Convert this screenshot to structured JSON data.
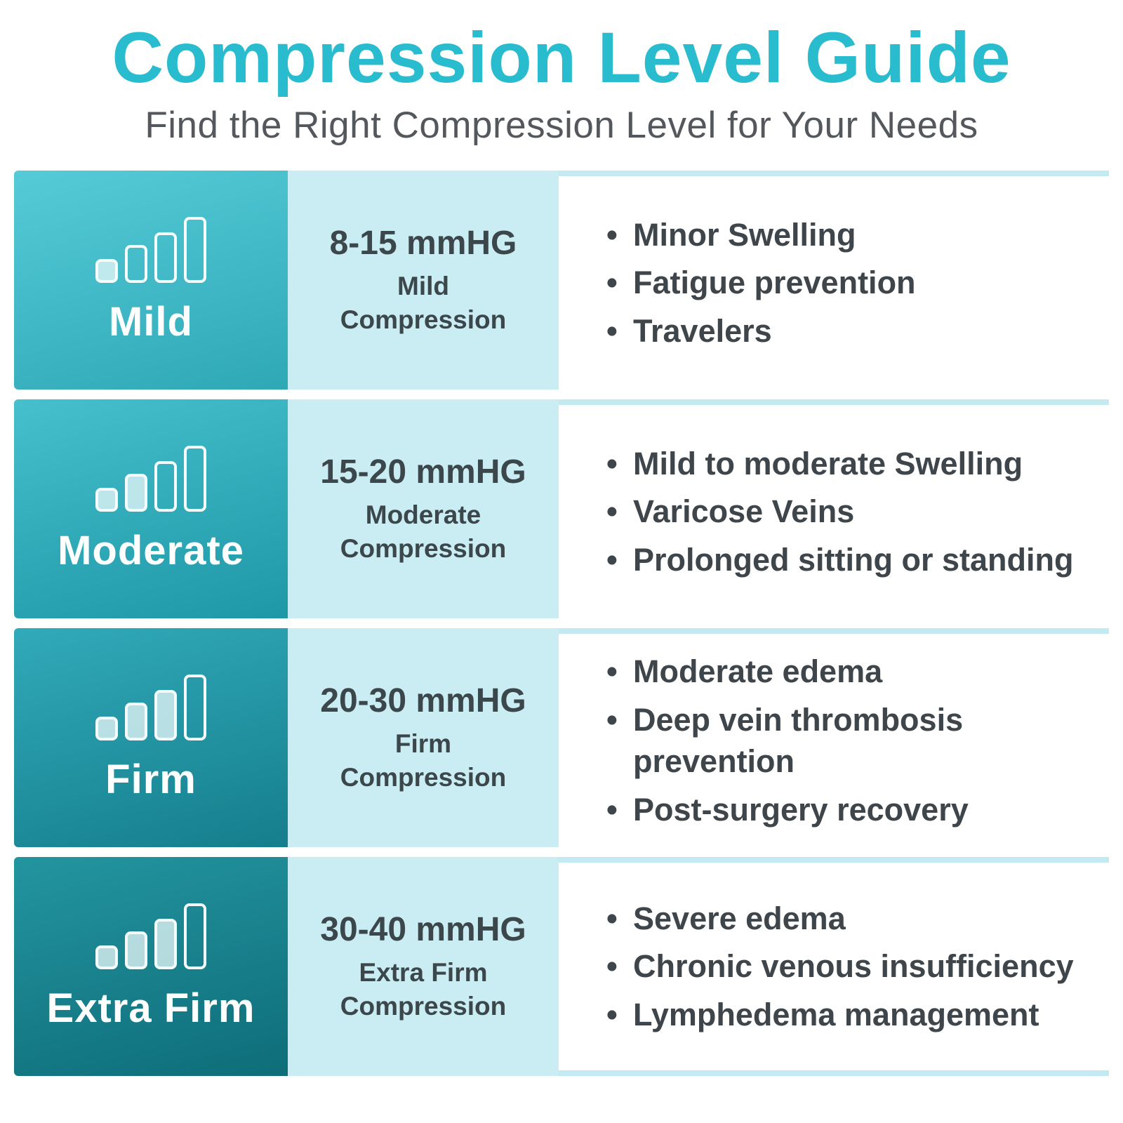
{
  "title": "Compression Level Guide",
  "subtitle": "Find the Right Compression Level for Your Needs",
  "colors": {
    "title_accent": "#28BCCE",
    "subtitle_text": "#54585D",
    "range_cell_bg": "#C9EDF2",
    "separator": "#C2EAF0",
    "body_text": "#3E464B"
  },
  "rows": [
    {
      "level": "Mild",
      "range": "8-15 mmHG",
      "type_line1": "Mild",
      "type_line2": "Compression",
      "icon": "signal-bars-icon",
      "icon_filled": 1,
      "gradient": [
        "#55CBD7",
        "#2FA8B6"
      ],
      "bullets": [
        "Minor Swelling",
        "Fatigue prevention",
        "Travelers"
      ]
    },
    {
      "level": "Moderate",
      "range": "15-20 mmHG",
      "type_line1": "Moderate",
      "type_line2": "Compression",
      "icon": "signal-bars-icon",
      "icon_filled": 2,
      "gradient": [
        "#46C0CD",
        "#1E97A6"
      ],
      "bullets": [
        "Mild to moderate Swelling",
        "Varicose Veins",
        "Prolonged sitting or standing"
      ]
    },
    {
      "level": "Firm",
      "range": "20-30 mmHG",
      "type_line1": "Firm",
      "type_line2": "Compression",
      "icon": "signal-bars-icon",
      "icon_filled": 3,
      "gradient": [
        "#31AAB9",
        "#157E8D"
      ],
      "bullets": [
        "Moderate edema",
        "Deep vein thrombosis prevention",
        "Post-surgery recovery"
      ]
    },
    {
      "level": "Extra Firm",
      "range": "30-40 mmHG",
      "type_line1": "Extra Firm",
      "type_line2": "Compression",
      "icon": "signal-bars-icon",
      "icon_filled": 3,
      "gradient": [
        "#23959F",
        "#0E6D79"
      ],
      "bullets": [
        "Severe edema",
        "Chronic venous insufficiency",
        "Lymphedema management"
      ]
    }
  ]
}
